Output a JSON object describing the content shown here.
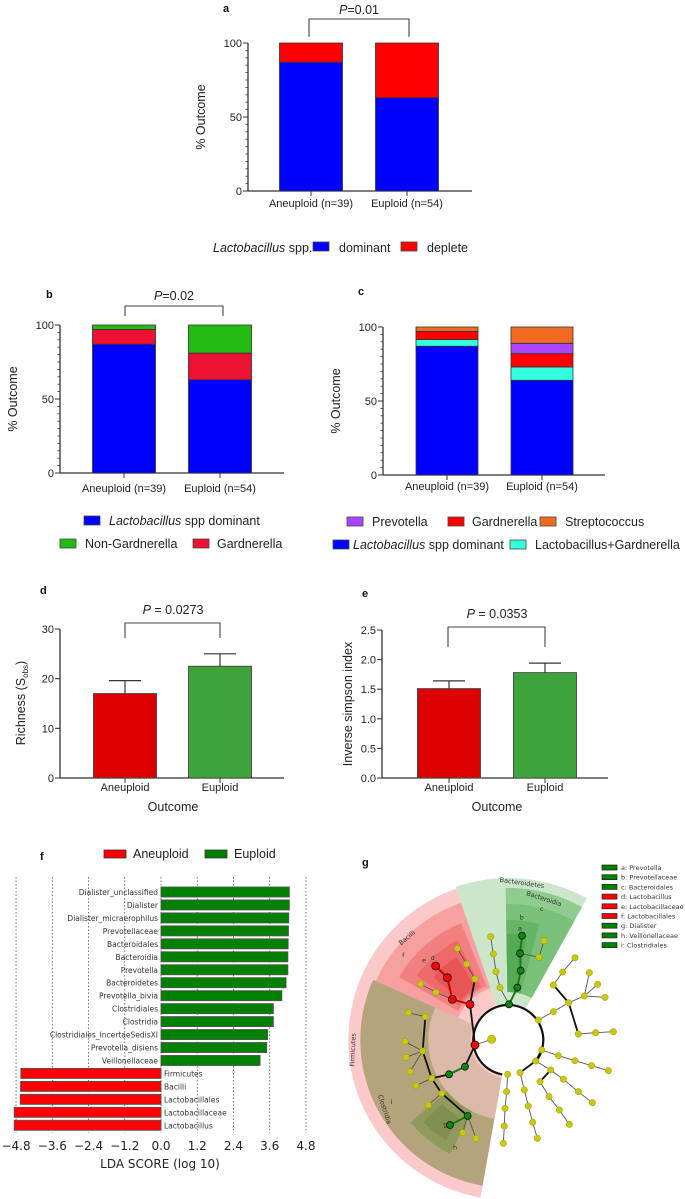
{
  "chart_data": [
    {
      "panel": "a",
      "type": "bar",
      "stacked": true,
      "ylabel": "% Outcome",
      "ylim": [
        0,
        100
      ],
      "yticks": [
        "0",
        "50",
        "100"
      ],
      "categories": [
        "Aneuploid (n=39)",
        "Euploid (n=54)"
      ],
      "series": [
        {
          "label_italic": "",
          "label": "dominant",
          "color": "#0000ff",
          "values": [
            87,
            63
          ]
        },
        {
          "label_italic": "",
          "label": "deplete",
          "color": "#ff0000",
          "values": [
            13,
            37
          ]
        }
      ],
      "annotation": {
        "p_symbol": "P",
        "p_text": "=0.01"
      },
      "legend": {
        "title_italic": "Lactobacillus",
        "title_rest": " spp."
      }
    },
    {
      "panel": "b",
      "type": "bar",
      "stacked": true,
      "ylabel": "% Outcome",
      "ylim": [
        0,
        100
      ],
      "yticks": [
        "0",
        "50",
        "100"
      ],
      "categories": [
        "Aneuploid (n=39)",
        "Euploid (n=54)"
      ],
      "series": [
        {
          "label_italic": "Lactobacillus",
          "label": " spp dominant",
          "color": "#0000ff",
          "values": [
            87,
            63
          ]
        },
        {
          "label_italic": "",
          "label": "Gardnerella",
          "color": "#ee1133",
          "values": [
            10,
            18
          ]
        },
        {
          "label_italic": "",
          "label": "Non-Gardnerella",
          "color": "#22bb11",
          "values": [
            3,
            19
          ]
        }
      ],
      "annotation": {
        "p_symbol": "P",
        "p_text": "=0.02"
      }
    },
    {
      "panel": "c",
      "type": "bar",
      "stacked": true,
      "ylabel": "% Outcome",
      "ylim": [
        0,
        100
      ],
      "yticks": [
        "0",
        "50",
        "100"
      ],
      "categories": [
        "Aneuploid (n=39)",
        "Euploid (n=54)"
      ],
      "series": [
        {
          "label_italic": "Lactobacillus",
          "label": " spp dominant",
          "color": "#0000ff",
          "values": [
            87,
            64
          ]
        },
        {
          "label_italic": "",
          "label": "Lactobacillus+Gardnerella",
          "color": "#33ffdd",
          "values": [
            4.5,
            9
          ]
        },
        {
          "label_italic": "",
          "label": "Gardnerella",
          "color": "#ff0000",
          "values": [
            5.5,
            9
          ]
        },
        {
          "label_italic": "",
          "label": "Prevotella",
          "color": "#aa44ff",
          "values": [
            0,
            7
          ]
        },
        {
          "label_italic": "",
          "label": "Streptococcus",
          "color": "#f26a22",
          "values": [
            3,
            11
          ]
        }
      ]
    },
    {
      "panel": "d",
      "type": "bar",
      "ylabel_main": "Richness (S",
      "ylabel_sub": "obs",
      "ylabel_end": ")",
      "xlabel": "Outcome",
      "ylim": [
        0,
        30
      ],
      "yticks": [
        "0",
        "10",
        "20",
        "30"
      ],
      "categories": [
        "Aneuploid",
        "Euploid"
      ],
      "values": [
        17.0,
        22.5
      ],
      "errors": [
        2.6,
        2.5
      ],
      "colors": [
        "#dd0000",
        "#3ea33a"
      ],
      "annotation": {
        "p_symbol": "P",
        "p_text": " = 0.0273"
      }
    },
    {
      "panel": "e",
      "type": "bar",
      "ylabel": "Inverse simpson index",
      "xlabel": "Outcome",
      "ylim": [
        0,
        2.5
      ],
      "yticks": [
        "0.0",
        "0.5",
        "1.0",
        "1.5",
        "2.0",
        "2.5"
      ],
      "categories": [
        "Aneuploid",
        "Euploid"
      ],
      "values": [
        1.51,
        1.78
      ],
      "errors": [
        0.13,
        0.16
      ],
      "colors": [
        "#dd0000",
        "#3ea33a"
      ],
      "annotation": {
        "p_symbol": "P",
        "p_text": " = 0.0353"
      }
    },
    {
      "panel": "f",
      "type": "bar",
      "orientation": "horizontal",
      "xlabel": "LDA SCORE (log 10)",
      "xlim": [
        -4.8,
        4.8
      ],
      "xticks": [
        "−4.8",
        "−3.6",
        "−2.4",
        "−1.2",
        "0.0",
        "1.2",
        "2.4",
        "3.6",
        "4.8"
      ],
      "legend": [
        {
          "name": "Aneuploid",
          "color": "#ff0000"
        },
        {
          "name": "Euploid",
          "color": "#008000"
        }
      ],
      "categories": [
        "Dialister_unclassified",
        "Dialister",
        "Dialister_micraerophilus",
        "Prevotellaceae",
        "Bacteroidales",
        "Bacteroidia",
        "Prevotella",
        "Bacteroidetes",
        "Prevotella_bivia",
        "Clostridiales",
        "Clostridia",
        "Clostridiales_IncertaeSedisXI",
        "Prevotella_disiens",
        "Veillonellaceae",
        "Firmicutes",
        "Bacilli",
        "Lactobacillales",
        "Lactobacillaceae",
        "Lactobacillus"
      ],
      "values": [
        4.25,
        4.25,
        4.23,
        4.22,
        4.21,
        4.2,
        4.2,
        4.14,
        4.0,
        3.72,
        3.72,
        3.53,
        3.5,
        3.28,
        -4.64,
        -4.65,
        -4.66,
        -4.86,
        -4.86
      ]
    }
  ],
  "cladogram": {
    "panel": "g",
    "clades": {
      "bacteroidetes": "Bacteroidetes",
      "bacteroidia": "Bacteroidia",
      "bacilli": "Bacilli",
      "firmicutes": "Firmicutes",
      "clostridia": "Clostridia"
    },
    "letters": [
      "a",
      "b",
      "c",
      "d",
      "e",
      "f",
      "g",
      "h",
      "i"
    ],
    "legend": [
      {
        "label": "a: Prevotella",
        "color": "#008000"
      },
      {
        "label": "b: Prevotellaceae",
        "color": "#008000"
      },
      {
        "label": "c: Bacteroidales",
        "color": "#008000"
      },
      {
        "label": "d: Lactobacillus",
        "color": "#ff0000"
      },
      {
        "label": "e: Lactobacillaceae",
        "color": "#ff0000"
      },
      {
        "label": "f: Lactobacillales",
        "color": "#ff0000"
      },
      {
        "label": "g: Dialister",
        "color": "#008000"
      },
      {
        "label": "h: Veillonellaceae",
        "color": "#008000"
      },
      {
        "label": "i: Clostridiales",
        "color": "#008000"
      }
    ]
  }
}
